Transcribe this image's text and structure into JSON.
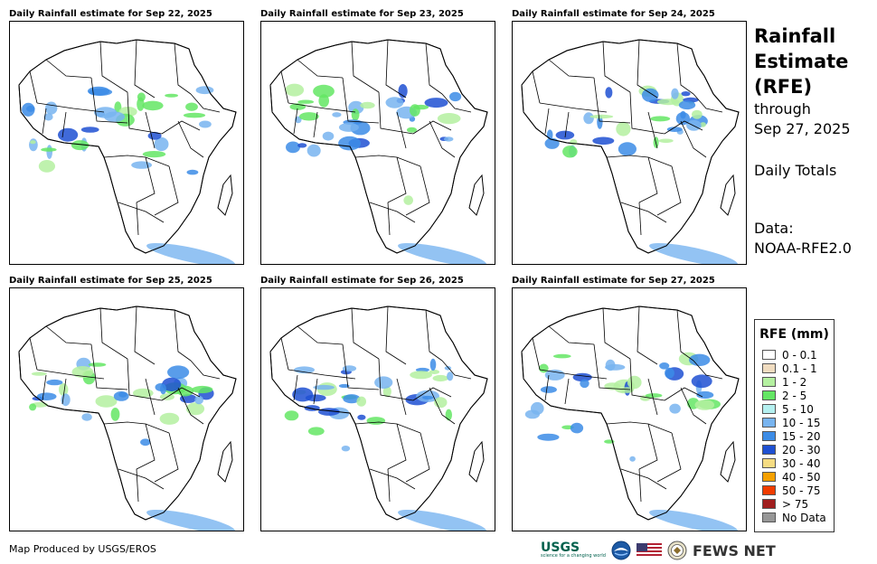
{
  "panels": [
    {
      "title": "Daily Rainfall estimate for Sep 22, 2025"
    },
    {
      "title": "Daily Rainfall estimate for Sep 23, 2025"
    },
    {
      "title": "Daily Rainfall estimate for Sep 24, 2025"
    },
    {
      "title": "Daily Rainfall estimate for Sep 25, 2025"
    },
    {
      "title": "Daily Rainfall estimate for Sep 26, 2025"
    },
    {
      "title": "Daily Rainfall estimate for Sep 27, 2025"
    }
  ],
  "side": {
    "title_line1": "Rainfall",
    "title_line2": "Estimate",
    "title_line3": "(RFE)",
    "through": "through",
    "date": "Sep 27, 2025",
    "totals": "Daily Totals",
    "data_label": "Data:",
    "data_source": "NOAA-RFE2.0"
  },
  "legend": {
    "title": "RFE (mm)",
    "items": [
      {
        "label": "0 - 0.1",
        "color": "#ffffff"
      },
      {
        "label": "0.1 - 1",
        "color": "#f0dcc0"
      },
      {
        "label": "1 - 2",
        "color": "#b4f0a0"
      },
      {
        "label": "2 - 5",
        "color": "#64e664"
      },
      {
        "label": "5 - 10",
        "color": "#b4f0f0"
      },
      {
        "label": "10 - 15",
        "color": "#78b4f0"
      },
      {
        "label": "15 - 20",
        "color": "#3c8ce6"
      },
      {
        "label": "20 - 30",
        "color": "#1e50d2"
      },
      {
        "label": "30 - 40",
        "color": "#f5dc82"
      },
      {
        "label": "40 - 50",
        "color": "#f5a000"
      },
      {
        "label": "50 - 75",
        "color": "#f03c00"
      },
      {
        "label": "> 75",
        "color": "#a01e1e"
      },
      {
        "label": "No Data",
        "color": "#969696"
      }
    ]
  },
  "credit": "Map Produced by USGS/EROS",
  "logos": {
    "usgs": "USGS",
    "usgs_tagline": "science for a changing world",
    "fews": "FEWS NET"
  }
}
